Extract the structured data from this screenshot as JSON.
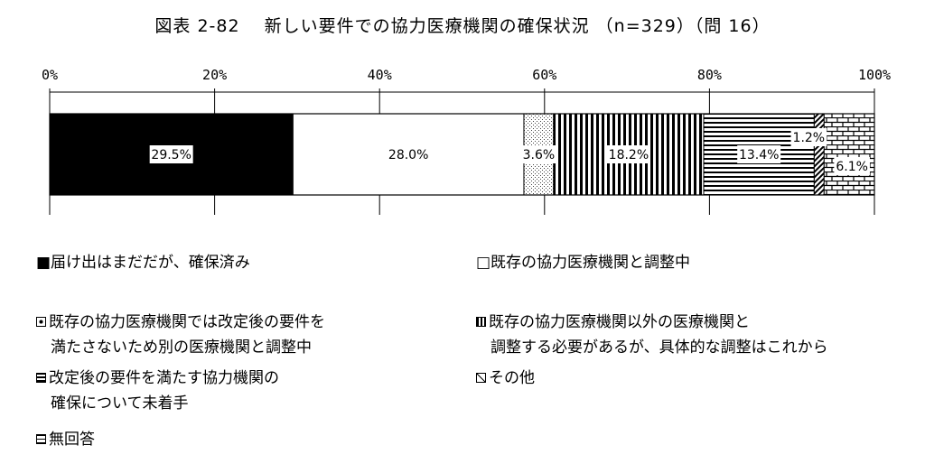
{
  "title": "図表 2-82　 新しい要件での協力医療機関の確保状況 （n=329）（問 16）",
  "chart_data": {
    "type": "bar",
    "orientation": "horizontal",
    "stacked_percent": true,
    "title": "図表 2-82　 新しい要件での協力医療機関の確保状況 （n=329）（問 16）",
    "xlim": [
      0,
      100
    ],
    "ticks": [
      "0%",
      "20%",
      "40%",
      "60%",
      "80%",
      "100%"
    ],
    "series": [
      {
        "name": "届け出はまだだが、確保済み",
        "value": 29.5,
        "label": "29.5%",
        "pattern": "solid-black"
      },
      {
        "name": "既存の協力医療機関と調整中",
        "value": 28.0,
        "label": "28.0%",
        "pattern": "white"
      },
      {
        "name": "既存の協力医療機関では改定後の要件を満たさないため別の医療機関と調整中",
        "value": 3.6,
        "label": "3.6%",
        "pattern": "dots"
      },
      {
        "name": "既存の協力医療機関以外の医療機関と調整する必要があるが、具体的な調整はこれから",
        "value": 18.2,
        "label": "18.2%",
        "pattern": "vertical-lines"
      },
      {
        "name": "改定後の要件を満たす協力機関の確保について未着手",
        "value": 13.4,
        "label": "13.4%",
        "pattern": "horizontal-lines"
      },
      {
        "name": "その他",
        "value": 1.2,
        "label": "1.2%",
        "pattern": "diagonal"
      },
      {
        "name": "無回答",
        "value": 6.1,
        "label": "6.1%",
        "pattern": "brick"
      }
    ],
    "grid": false,
    "legend_position": "bottom"
  },
  "legend": [
    {
      "line1": "■届け出はまだだが、確保済み",
      "line2": ""
    },
    {
      "line1": "□既存の協力医療機関と調整中",
      "line2": ""
    },
    {
      "line1": "既存の協力医療機関では改定後の要件を",
      "line2": "満たさないため別の医療機関と調整中"
    },
    {
      "line1": "既存の協力医療機関以外の医療機関と",
      "line2": "調整する必要があるが、具体的な調整はこれから"
    },
    {
      "line1": "改定後の要件を満たす協力機関の",
      "line2": "確保について未着手"
    },
    {
      "line1": "その他",
      "line2": ""
    },
    {
      "line1": "無回答",
      "line2": ""
    }
  ]
}
